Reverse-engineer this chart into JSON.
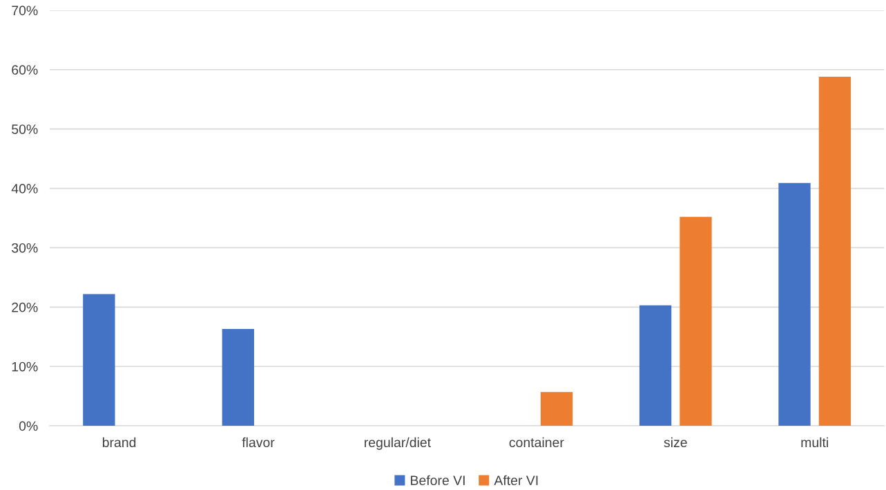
{
  "chart_data": {
    "type": "bar",
    "categories": [
      "brand",
      "flavor",
      "regular/diet",
      "container",
      "size",
      "multi"
    ],
    "series": [
      {
        "name": "Before VI",
        "color": "#4472c4",
        "values": [
          22.2,
          16.3,
          0,
          0,
          20.3,
          40.9
        ]
      },
      {
        "name": "After VI",
        "color": "#ed7d31",
        "values": [
          0,
          0,
          0,
          5.7,
          35.2,
          58.8
        ]
      }
    ],
    "ylim": [
      0,
      70
    ],
    "yticks": [
      {
        "value": 0,
        "label": "0%"
      },
      {
        "value": 10,
        "label": "10%"
      },
      {
        "value": 20,
        "label": "20%"
      },
      {
        "value": 30,
        "label": "30%"
      },
      {
        "value": 40,
        "label": "40%"
      },
      {
        "value": 50,
        "label": "50%"
      },
      {
        "value": 60,
        "label": "60%"
      },
      {
        "value": 70,
        "label": "70%"
      }
    ],
    "grid": "y",
    "legend": "bottom"
  }
}
